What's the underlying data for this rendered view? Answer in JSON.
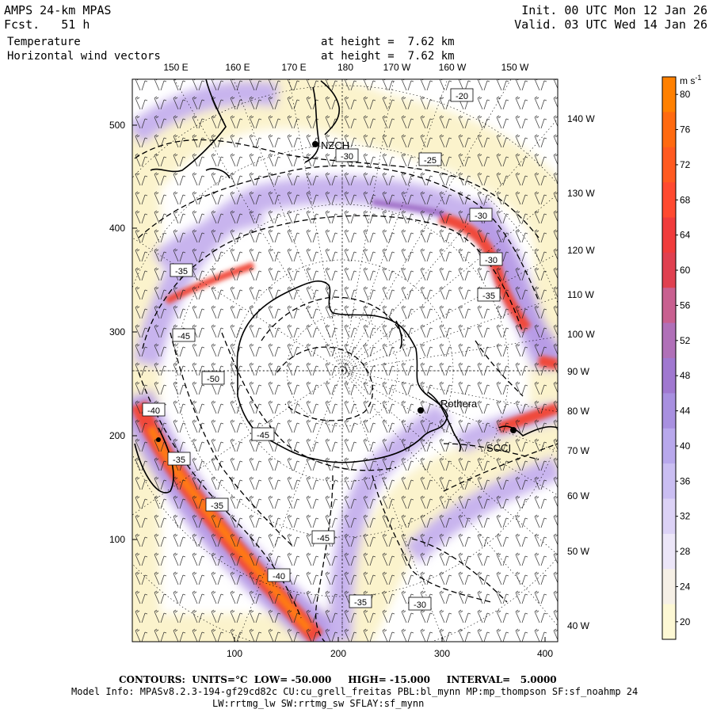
{
  "header": {
    "title_left": "AMPS 24-km MPAS",
    "forecast": "Fcst.   51 h",
    "field1": "Temperature",
    "field2": "Horizontal wind vectors",
    "init": "Init. 00 UTC Mon 12 Jan 26",
    "valid": "Valid. 03 UTC Wed 14 Jan 26",
    "height1": "at height =  7.62 km",
    "height2": "at height =  7.62 km"
  },
  "axes": {
    "x_ticks": [
      "100",
      "200",
      "300",
      "400"
    ],
    "y_ticks": [
      "100",
      "200",
      "300",
      "400",
      "500"
    ]
  },
  "longitude_labels": {
    "top": [
      "150 E",
      "160 E",
      "170 E",
      "180",
      "170 W",
      "160 W",
      "150 W"
    ],
    "right": [
      "140 W",
      "130 W",
      "120 W",
      "110 W",
      "100 W",
      "90 W",
      "80 W",
      "70 W",
      "60 W",
      "50 W",
      "40 W"
    ]
  },
  "stations": {
    "north": "NZCH",
    "rothera": "Rothera",
    "south": "SCCI"
  },
  "contour_labels": [
    {
      "text": "-20"
    },
    {
      "text": "-30"
    },
    {
      "text": "-25"
    },
    {
      "text": "-30"
    },
    {
      "text": "-30"
    },
    {
      "text": "-35"
    },
    {
      "text": "-35"
    },
    {
      "text": "-45"
    },
    {
      "text": "-50"
    },
    {
      "text": "-40"
    },
    {
      "text": "-45"
    },
    {
      "text": "-35"
    },
    {
      "text": "-35"
    },
    {
      "text": "-45"
    },
    {
      "text": "-40"
    },
    {
      "text": "-35"
    },
    {
      "text": "-30"
    }
  ],
  "colorbar": {
    "unit": "m s",
    "unit_sup": "-1",
    "labels": [
      "80",
      "76",
      "72",
      "68",
      "64",
      "60",
      "56",
      "52",
      "48",
      "44",
      "40",
      "36",
      "32",
      "28",
      "24",
      "20"
    ],
    "colors": [
      "#ff8000",
      "#ff6a10",
      "#ff5a20",
      "#ff4a30",
      "#f03c3c",
      "#e04050",
      "#c86090",
      "#b070b8",
      "#a078d0",
      "#a890e0",
      "#b8a8ec",
      "#cabef2",
      "#dcd2f6",
      "#ece6f8",
      "#f6f0e6",
      "#fdf8d4"
    ]
  },
  "footer": {
    "contours": "CONTOURS:  UNITS=°C  LOW= -50.000     HIGH= -15.000     INTERVAL=   5.0000",
    "model_info": "Model Info: MPASv8.2.3-194-gf29cd82c CU:cu_grell_freitas PBL:bl_mynn MP:mp_thompson SF:sf_noahmp 24",
    "model_info2": "LW:rrtmg_lw SW:rrtmg_sw SFLAY:sf_mynn"
  }
}
